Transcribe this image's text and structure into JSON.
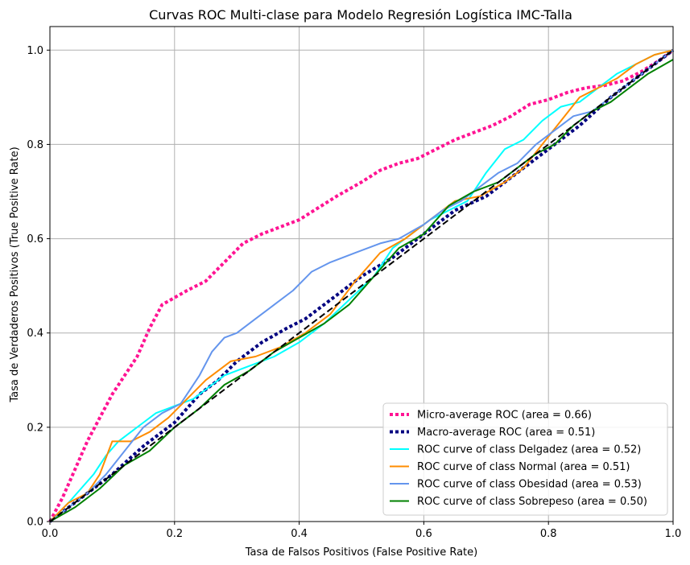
{
  "chart_data": {
    "type": "line",
    "title": "Curvas ROC Multi-clase para Modelo Regresión Logística IMC-Talla",
    "xlabel": "Tasa de Falsos Positivos (False Positive Rate)",
    "ylabel": "Tasa de Verdaderos Positivos (True Positive Rate)",
    "xlim": [
      0.0,
      1.0
    ],
    "ylim": [
      0.0,
      1.05
    ],
    "xticks": [
      0.0,
      0.2,
      0.4,
      0.6,
      0.8,
      1.0
    ],
    "yticks": [
      0.0,
      0.2,
      0.4,
      0.6,
      0.8,
      1.0
    ],
    "xtick_labels": [
      "0.0",
      "0.2",
      "0.4",
      "0.6",
      "0.8",
      "1.0"
    ],
    "ytick_labels": [
      "0.0",
      "0.2",
      "0.4",
      "0.6",
      "0.8",
      "1.0"
    ],
    "grid": true,
    "legend_position": "bottom-right",
    "series": [
      {
        "name": "Micro-average ROC (area = 0.66)",
        "color": "#ff1493",
        "style": "dotted",
        "width": 4,
        "x": [
          0,
          0.02,
          0.04,
          0.06,
          0.08,
          0.1,
          0.12,
          0.14,
          0.16,
          0.18,
          0.2,
          0.22,
          0.25,
          0.28,
          0.31,
          0.34,
          0.37,
          0.4,
          0.43,
          0.46,
          0.5,
          0.53,
          0.56,
          0.59,
          0.62,
          0.65,
          0.68,
          0.71,
          0.74,
          0.77,
          0.8,
          0.83,
          0.86,
          0.89,
          0.92,
          0.95,
          0.98,
          1.0
        ],
        "y": [
          0,
          0.05,
          0.11,
          0.17,
          0.22,
          0.27,
          0.31,
          0.35,
          0.41,
          0.46,
          0.475,
          0.49,
          0.51,
          0.55,
          0.59,
          0.61,
          0.625,
          0.64,
          0.665,
          0.69,
          0.72,
          0.745,
          0.76,
          0.77,
          0.79,
          0.81,
          0.825,
          0.84,
          0.86,
          0.885,
          0.895,
          0.91,
          0.92,
          0.925,
          0.935,
          0.955,
          0.98,
          1.0
        ]
      },
      {
        "name": "Macro-average ROC (area = 0.51)",
        "color": "#000080",
        "style": "dotted",
        "width": 4,
        "x": [
          0,
          0.05,
          0.1,
          0.15,
          0.2,
          0.24,
          0.27,
          0.3,
          0.34,
          0.38,
          0.41,
          0.45,
          0.5,
          0.55,
          0.6,
          0.65,
          0.7,
          0.75,
          0.8,
          0.85,
          0.9,
          0.95,
          1.0
        ],
        "y": [
          0,
          0.05,
          0.1,
          0.16,
          0.21,
          0.27,
          0.3,
          0.34,
          0.38,
          0.41,
          0.43,
          0.47,
          0.52,
          0.56,
          0.61,
          0.66,
          0.69,
          0.74,
          0.79,
          0.84,
          0.9,
          0.95,
          1.0
        ]
      },
      {
        "name": "ROC curve of class Delgadez (area = 0.52)",
        "color": "#00ffff",
        "style": "solid",
        "width": 2,
        "x": [
          0,
          0.03,
          0.05,
          0.07,
          0.09,
          0.11,
          0.13,
          0.15,
          0.17,
          0.19,
          0.21,
          0.23,
          0.25,
          0.28,
          0.32,
          0.36,
          0.4,
          0.44,
          0.48,
          0.52,
          0.55,
          0.58,
          0.61,
          0.64,
          0.67,
          0.7,
          0.73,
          0.76,
          0.79,
          0.82,
          0.85,
          0.88,
          0.91,
          0.94,
          0.97,
          1.0
        ],
        "y": [
          0,
          0.04,
          0.07,
          0.1,
          0.14,
          0.17,
          0.19,
          0.21,
          0.23,
          0.24,
          0.25,
          0.26,
          0.28,
          0.31,
          0.33,
          0.35,
          0.38,
          0.42,
          0.47,
          0.52,
          0.58,
          0.61,
          0.64,
          0.66,
          0.68,
          0.74,
          0.79,
          0.81,
          0.85,
          0.88,
          0.89,
          0.92,
          0.95,
          0.97,
          0.99,
          1.0
        ]
      },
      {
        "name": "ROC curve of class Normal (area = 0.51)",
        "color": "#ff8c00",
        "style": "solid",
        "width": 2,
        "x": [
          0,
          0.03,
          0.06,
          0.08,
          0.1,
          0.13,
          0.16,
          0.19,
          0.22,
          0.25,
          0.29,
          0.33,
          0.37,
          0.41,
          0.45,
          0.49,
          0.53,
          0.57,
          0.61,
          0.65,
          0.69,
          0.73,
          0.76,
          0.79,
          0.82,
          0.85,
          0.88,
          0.91,
          0.94,
          0.97,
          1.0
        ],
        "y": [
          0,
          0.04,
          0.06,
          0.1,
          0.17,
          0.17,
          0.19,
          0.22,
          0.26,
          0.3,
          0.34,
          0.35,
          0.37,
          0.4,
          0.44,
          0.51,
          0.57,
          0.6,
          0.64,
          0.68,
          0.69,
          0.72,
          0.75,
          0.8,
          0.85,
          0.9,
          0.92,
          0.94,
          0.97,
          0.99,
          1.0
        ]
      },
      {
        "name": "ROC curve of class Obesidad (area = 0.53)",
        "color": "#6495ed",
        "style": "solid",
        "width": 2,
        "x": [
          0,
          0.03,
          0.06,
          0.09,
          0.12,
          0.15,
          0.18,
          0.21,
          0.24,
          0.26,
          0.28,
          0.3,
          0.33,
          0.36,
          0.39,
          0.42,
          0.45,
          0.49,
          0.53,
          0.56,
          0.6,
          0.63,
          0.66,
          0.69,
          0.72,
          0.75,
          0.78,
          0.81,
          0.84,
          0.87,
          0.9,
          0.93,
          0.96,
          1.0
        ],
        "y": [
          0,
          0.03,
          0.06,
          0.1,
          0.15,
          0.2,
          0.23,
          0.25,
          0.31,
          0.36,
          0.39,
          0.4,
          0.43,
          0.46,
          0.49,
          0.53,
          0.55,
          0.57,
          0.59,
          0.6,
          0.63,
          0.66,
          0.68,
          0.71,
          0.74,
          0.76,
          0.8,
          0.83,
          0.86,
          0.87,
          0.9,
          0.93,
          0.96,
          1.0
        ]
      },
      {
        "name": "ROC curve of class Sobrepeso (area = 0.50)",
        "color": "#008000",
        "style": "solid",
        "width": 2,
        "x": [
          0,
          0.04,
          0.08,
          0.12,
          0.16,
          0.2,
          0.24,
          0.28,
          0.32,
          0.36,
          0.4,
          0.44,
          0.48,
          0.52,
          0.56,
          0.6,
          0.64,
          0.68,
          0.72,
          0.75,
          0.78,
          0.81,
          0.84,
          0.87,
          0.9,
          0.93,
          0.96,
          1.0
        ],
        "y": [
          0,
          0.03,
          0.07,
          0.12,
          0.15,
          0.2,
          0.24,
          0.29,
          0.32,
          0.36,
          0.39,
          0.42,
          0.46,
          0.52,
          0.58,
          0.61,
          0.67,
          0.7,
          0.72,
          0.75,
          0.78,
          0.8,
          0.84,
          0.87,
          0.89,
          0.92,
          0.95,
          0.98
        ]
      },
      {
        "name": "",
        "color": "#000000",
        "style": "dashed",
        "width": 2,
        "in_legend": false,
        "x": [
          0,
          1
        ],
        "y": [
          0,
          1
        ]
      }
    ]
  }
}
